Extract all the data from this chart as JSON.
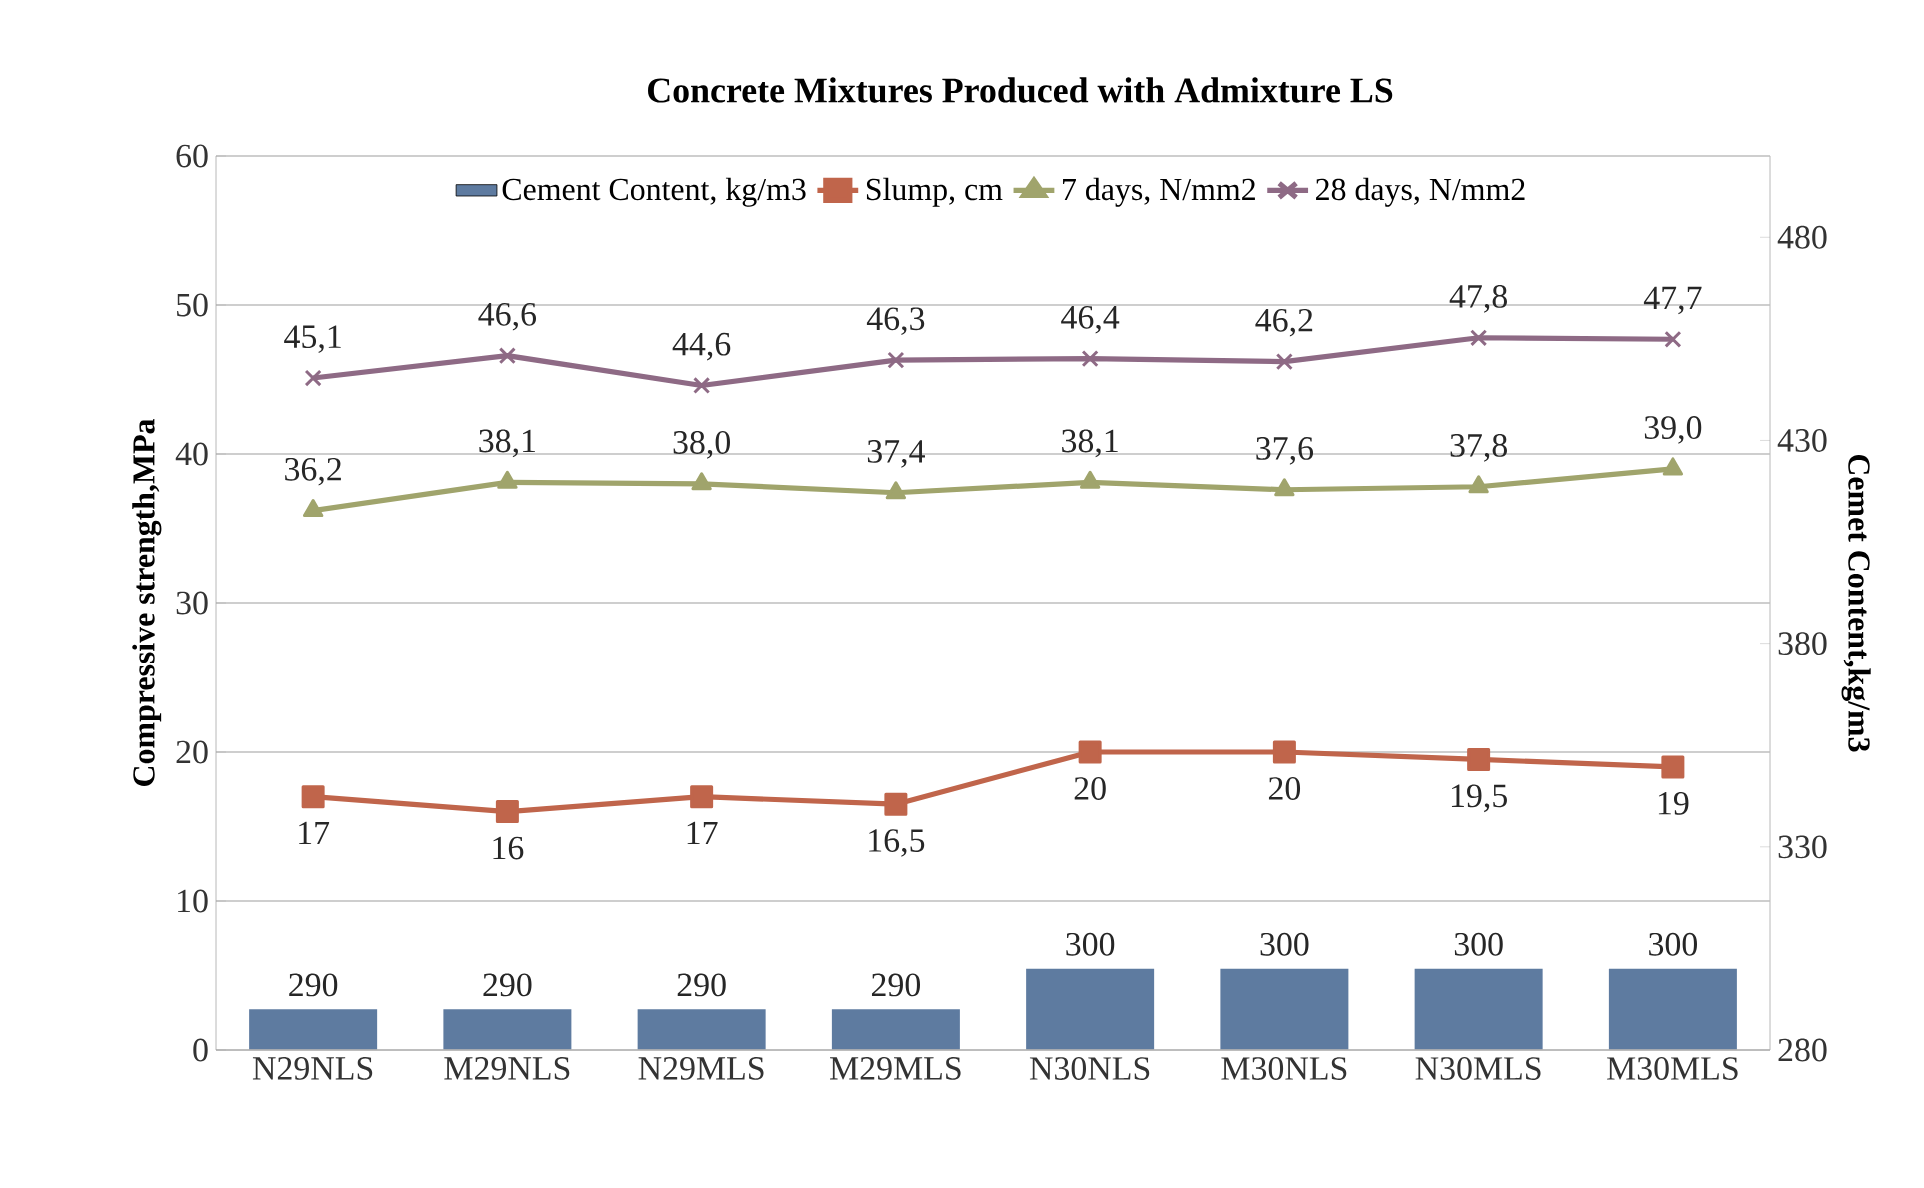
{
  "chart_data": {
    "type": "line",
    "title": "Concrete Mixtures Produced with Admixture LS",
    "ylabel": "Compressive strength,MPa",
    "y2label": "Cemet Content,kg/m3",
    "categories": [
      "N29NLS",
      "M29NLS",
      "N29MLS",
      "M29MLS",
      "N30NLS",
      "M30NLS",
      "N30MLS",
      "M30MLS"
    ],
    "ylim": [
      0,
      60
    ],
    "yticks": [
      0,
      10,
      20,
      30,
      40,
      50,
      60
    ],
    "y2lim": [
      280,
      500
    ],
    "y2ticks": [
      280,
      330,
      380,
      430,
      480
    ],
    "grid": "y",
    "legend": "top",
    "series": [
      {
        "name": "Cement Content, kg/m3",
        "type": "bar",
        "axis": "y2",
        "color": "#5e7ba0",
        "values": [
          290,
          290,
          290,
          290,
          300,
          300,
          300,
          300
        ],
        "value_labels": [
          "290",
          "290",
          "290",
          "290",
          "300",
          "300",
          "300",
          "300"
        ]
      },
      {
        "name": "Slump, cm",
        "color": "#c0654b",
        "marker": "square",
        "values": [
          17,
          16,
          17,
          16.5,
          20,
          20,
          19.5,
          19
        ],
        "value_labels": [
          "17",
          "16",
          "17",
          "16,5",
          "20",
          "20",
          "19,5",
          "19"
        ]
      },
      {
        "name": "7 days, N/mm2",
        "color": "#a0a46c",
        "marker": "triangle",
        "values": [
          36.2,
          38.1,
          38.0,
          37.4,
          38.1,
          37.6,
          37.8,
          39.0
        ],
        "value_labels": [
          "36,2",
          "38,1",
          "38,0",
          "37,4",
          "38,1",
          "37,6",
          "37,8",
          "39,0"
        ]
      },
      {
        "name": "28 days, N/mm2",
        "color": "#8e6a85",
        "marker": "cross",
        "values": [
          45.1,
          46.6,
          44.6,
          46.3,
          46.4,
          46.2,
          47.8,
          47.7
        ],
        "value_labels": [
          "45,1",
          "46,6",
          "44,6",
          "46,3",
          "46,4",
          "46,2",
          "47,8",
          "47,7"
        ]
      }
    ]
  }
}
